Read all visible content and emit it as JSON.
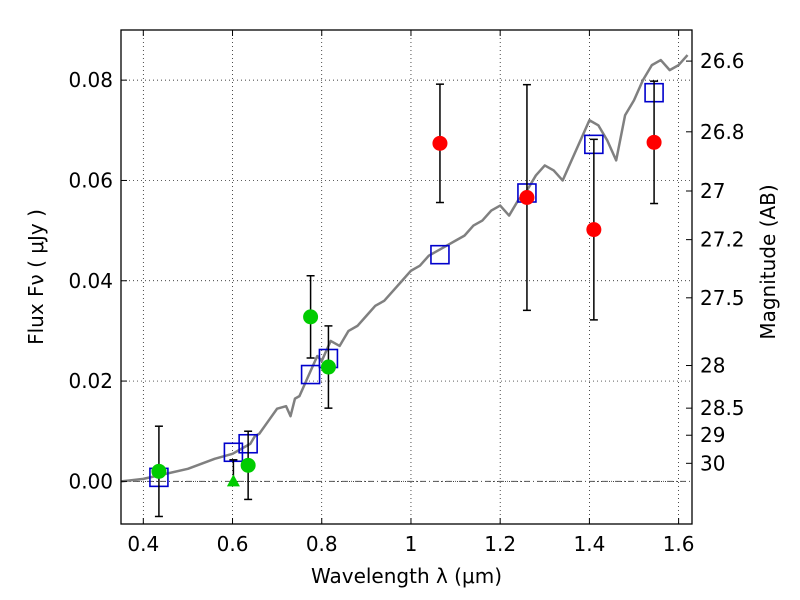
{
  "chart_data": {
    "type": "scatter",
    "xlabel": "Wavelength  λ (μm)",
    "ylabel": "Flux  Fν  ( μJy )",
    "ylabel_right": "Magnitude (AB)",
    "xlim": [
      0.35,
      1.63
    ],
    "ylim": [
      -0.0085,
      0.09
    ],
    "grid": true,
    "x_ticks": [
      0.4,
      0.6,
      0.8,
      1.0,
      1.2,
      1.4,
      1.6
    ],
    "x_tick_labels": [
      "0.4",
      "0.6",
      "0.8",
      "1",
      "1.2",
      "1.4",
      "1.6"
    ],
    "y_ticks": [
      0.0,
      0.02,
      0.04,
      0.06,
      0.08
    ],
    "y_tick_labels": [
      "0.00",
      "0.02",
      "0.04",
      "0.06",
      "0.08"
    ],
    "right_ticks": [
      {
        "label": "26.6",
        "flux": 0.0838
      },
      {
        "label": "26.8",
        "flux": 0.0697
      },
      {
        "label": "27",
        "flux": 0.0579
      },
      {
        "label": "27.2",
        "flux": 0.0482
      },
      {
        "label": "27.5",
        "flux": 0.0366
      },
      {
        "label": "28",
        "flux": 0.0231
      },
      {
        "label": "28.5",
        "flux": 0.0146
      },
      {
        "label": "29",
        "flux": 0.0092
      },
      {
        "label": "30",
        "flux": 0.0036
      }
    ],
    "colors": {
      "spectrum": "#808080",
      "model": "#0000cc",
      "green": "#00cc00",
      "red": "#ff0000",
      "errorbar": "#000000",
      "zero_line": "#555555"
    },
    "series": [
      {
        "kind": "spectrum",
        "x": [
          0.35,
          0.4,
          0.45,
          0.5,
          0.53,
          0.56,
          0.58,
          0.6,
          0.62,
          0.64,
          0.65,
          0.66,
          0.68,
          0.7,
          0.72,
          0.73,
          0.74,
          0.75,
          0.77,
          0.79,
          0.8,
          0.82,
          0.84,
          0.86,
          0.88,
          0.9,
          0.92,
          0.94,
          0.96,
          0.98,
          1.0,
          1.02,
          1.04,
          1.06,
          1.08,
          1.1,
          1.12,
          1.14,
          1.16,
          1.18,
          1.2,
          1.22,
          1.24,
          1.26,
          1.28,
          1.3,
          1.32,
          1.34,
          1.36,
          1.38,
          1.4,
          1.42,
          1.44,
          1.46,
          1.48,
          1.5,
          1.52,
          1.54,
          1.56,
          1.58,
          1.6,
          1.62
        ],
        "y": [
          0.0,
          0.0005,
          0.0015,
          0.0025,
          0.0035,
          0.0045,
          0.005,
          0.0055,
          0.0065,
          0.0075,
          0.009,
          0.0095,
          0.012,
          0.0145,
          0.015,
          0.013,
          0.0165,
          0.017,
          0.021,
          0.025,
          0.024,
          0.028,
          0.027,
          0.03,
          0.031,
          0.033,
          0.035,
          0.036,
          0.038,
          0.04,
          0.042,
          0.043,
          0.045,
          0.046,
          0.047,
          0.048,
          0.049,
          0.051,
          0.052,
          0.054,
          0.055,
          0.053,
          0.056,
          0.058,
          0.061,
          0.063,
          0.062,
          0.06,
          0.064,
          0.068,
          0.072,
          0.071,
          0.068,
          0.064,
          0.073,
          0.076,
          0.08,
          0.083,
          0.084,
          0.082,
          0.083,
          0.085
        ]
      },
      {
        "kind": "model",
        "x": [
          0.435,
          0.602,
          0.635,
          0.775,
          0.815,
          1.065,
          1.26,
          1.41,
          1.545
        ],
        "y": [
          0.0008,
          0.0058,
          0.0075,
          0.0213,
          0.0245,
          0.0452,
          0.0575,
          0.0672,
          0.0775
        ]
      },
      {
        "kind": "green",
        "x": [
          0.435,
          0.635,
          0.775,
          0.815
        ],
        "y": [
          0.002,
          0.0032,
          0.0328,
          0.0228
        ],
        "err": [
          0.009,
          0.0068,
          0.0082,
          0.0082
        ]
      },
      {
        "kind": "red",
        "x": [
          1.065,
          1.26,
          1.41,
          1.545
        ],
        "y": [
          0.0674,
          0.0566,
          0.0502,
          0.0676
        ],
        "err": [
          0.0118,
          0.0225,
          0.018,
          0.0122
        ]
      },
      {
        "kind": "green-triangle",
        "x": [
          0.602
        ],
        "y": [
          0.0
        ],
        "upper_limit": [
          0.0043
        ]
      }
    ]
  }
}
